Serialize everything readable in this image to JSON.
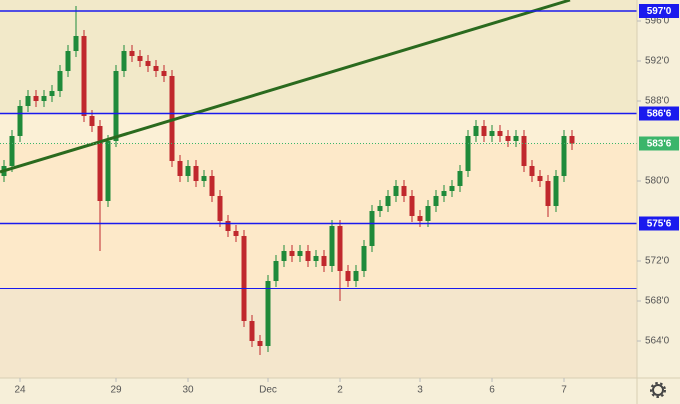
{
  "chart_data": {
    "type": "candlestick",
    "open": [
      580.5,
      581.5,
      584.5,
      587.5,
      588.5,
      588,
      588.5,
      589,
      591,
      593,
      594.5,
      586.5,
      585.5,
      578,
      584,
      591,
      593,
      592.5,
      592,
      591.5,
      591,
      590.5,
      582,
      580.5,
      581.5,
      580,
      580.5,
      578.5,
      576,
      575,
      574.5,
      566,
      564,
      563.5,
      570,
      572,
      573,
      572.5,
      573,
      572,
      572.5,
      571.5,
      575.5,
      571,
      570,
      571,
      573.5,
      577,
      577.5,
      578.5,
      579.5,
      578.5,
      576.5,
      576,
      577.5,
      578.5,
      579,
      579.5,
      581,
      584.5,
      585.5,
      584.5,
      585,
      584.5,
      584,
      584.5,
      581.5,
      580.5,
      580,
      577.5,
      580.5,
      584.5
    ],
    "high": [
      582.1,
      585.1,
      588.1,
      589.1,
      589.1,
      589.1,
      589.6,
      591.6,
      593.6,
      597.5,
      595.1,
      587.1,
      586.1,
      584.6,
      591.6,
      593.6,
      593.6,
      593.1,
      592.6,
      592.1,
      591.6,
      591.1,
      582.6,
      582.1,
      582.1,
      581.1,
      581.1,
      579.1,
      576.6,
      575.6,
      575.1,
      566.6,
      564.6,
      570.6,
      572.6,
      573.6,
      573.6,
      573.6,
      573.6,
      573.1,
      573.1,
      576.1,
      576.1,
      571.6,
      571.6,
      574.1,
      577.6,
      578.1,
      579.1,
      580.1,
      580.1,
      579.1,
      577.1,
      578.1,
      579.1,
      579.6,
      580.1,
      581.6,
      585.1,
      586.1,
      586.1,
      585.6,
      585.6,
      585.1,
      585.1,
      585.1,
      582.1,
      581.1,
      580.6,
      581.1,
      585.1,
      585.1
    ],
    "low": [
      579.9,
      580.9,
      583.9,
      586.9,
      587.4,
      587.4,
      587.9,
      588.4,
      590.4,
      592.4,
      585.9,
      584.9,
      573,
      577.4,
      583.4,
      590.4,
      591.9,
      591.4,
      590.9,
      590.4,
      589.9,
      581.4,
      579.9,
      579.9,
      579.4,
      579.4,
      577.9,
      575.4,
      574.4,
      573.9,
      565.4,
      563.4,
      562.6,
      562.9,
      569.4,
      571.4,
      571.9,
      571.9,
      571.4,
      571.4,
      570.9,
      570.9,
      568,
      569.4,
      569.4,
      570.4,
      572.9,
      576.4,
      576.9,
      577.9,
      577.9,
      575.9,
      575.4,
      575.4,
      576.9,
      577.9,
      578.4,
      578.9,
      580.4,
      583.9,
      583.9,
      583.9,
      583.9,
      583.4,
      583.4,
      580.9,
      579.9,
      579.4,
      576.4,
      576.9,
      579.9,
      583.1
    ],
    "close": [
      581.5,
      584.5,
      587.5,
      588.5,
      588,
      588.5,
      589,
      591,
      593,
      594.5,
      586.5,
      585.5,
      578,
      584,
      591,
      593,
      592.5,
      592,
      591.5,
      591,
      590.5,
      582,
      580.5,
      581.5,
      580,
      580.5,
      578.5,
      576,
      575,
      574.5,
      566,
      564,
      563.5,
      570,
      572,
      573,
      572.5,
      573,
      572,
      572.5,
      571.5,
      575.5,
      571,
      570,
      571,
      573.5,
      577,
      577.5,
      578.5,
      579.5,
      578.5,
      576.5,
      576,
      577.5,
      578.5,
      579,
      579.5,
      581,
      584.5,
      585.5,
      584.5,
      585,
      584.5,
      584,
      584.5,
      581.5,
      580.5,
      580,
      577.5,
      580.5,
      584.5,
      583.75
    ],
    "up_color": "#1f8a3a",
    "down_color": "#c0282d",
    "ylim": [
      560.3,
      598.1
    ],
    "yticks": [
      {
        "value": 564,
        "label": "564'0"
      },
      {
        "value": 568,
        "label": "568'0"
      },
      {
        "value": 572,
        "label": "572'0"
      },
      {
        "value": 580,
        "label": "580'0"
      },
      {
        "value": 588,
        "label": "588'0"
      },
      {
        "value": 592,
        "label": "592'0"
      },
      {
        "value": 596,
        "label": "596'0"
      }
    ],
    "xticks": [
      {
        "value": 2,
        "label": "24"
      },
      {
        "value": 14,
        "label": "29"
      },
      {
        "value": 23,
        "label": "30"
      },
      {
        "value": 33,
        "label": "Dec"
      },
      {
        "value": 42,
        "label": "2"
      },
      {
        "value": 52,
        "label": "3"
      },
      {
        "value": 61,
        "label": "6"
      },
      {
        "value": 70,
        "label": "7"
      }
    ],
    "bands": [
      {
        "from": 586.75,
        "to": 598.1,
        "color": "#f2e9c9"
      },
      {
        "from": 583.75,
        "to": 586.75,
        "color": "#fbf0d6"
      },
      {
        "from": 569.25,
        "to": 583.75,
        "color": "#fde9c9"
      },
      {
        "from": 560.3,
        "to": 569.25,
        "color": "#f4e6cc"
      }
    ],
    "levels": [
      {
        "value": 597,
        "label": "597'0",
        "color": "#1a1aee"
      },
      {
        "value": 586.75,
        "label": "586'6",
        "color": "#1a1aee"
      },
      {
        "value": 575.75,
        "label": "575'6",
        "color": "#1a1aee"
      },
      {
        "value": 569.25,
        "color": "#1a1aee"
      }
    ],
    "last_price": {
      "value": 583.75,
      "label": "583'6",
      "color": "#3bb56a"
    },
    "trend_line": {
      "x": [
        -0.5,
        70.75
      ],
      "y": [
        580.9,
        598.1
      ],
      "color": "#2a6a1e"
    }
  }
}
